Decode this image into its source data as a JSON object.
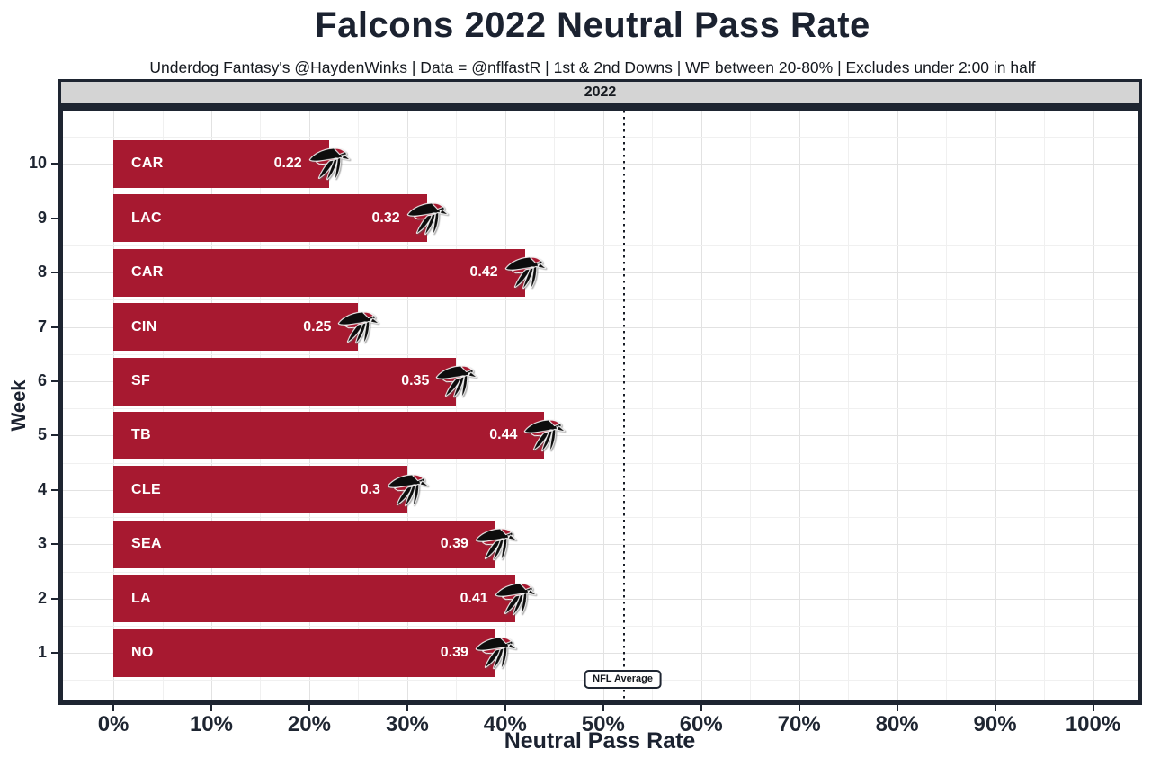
{
  "header": {
    "title": "Falcons 2022 Neutral Pass Rate",
    "subtitle": "Underdog Fantasy's @HaydenWinks | Data = @nflfastR | 1st & 2nd Downs | WP between 20-80% | Excludes under 2:00 in half"
  },
  "chart_data": {
    "type": "bar",
    "orientation": "horizontal",
    "title": "Falcons 2022 Neutral Pass Rate",
    "subtitle": "Underdog Fantasy's @HaydenWinks | Data = @nflfastR | 1st & 2nd Downs | WP between 20-80% | Excludes under 2:00 in half",
    "facet_label": "2022",
    "x_axis": {
      "label": "Neutral Pass Rate",
      "tick_labels": [
        "0%",
        "10%",
        "20%",
        "30%",
        "40%",
        "50%",
        "60%",
        "70%",
        "80%",
        "90%",
        "100%"
      ],
      "tick_values": [
        0,
        0.1,
        0.2,
        0.3,
        0.4,
        0.5,
        0.6,
        0.7,
        0.8,
        0.9,
        1.0
      ],
      "range": [
        0,
        1
      ],
      "grid": true
    },
    "y_axis": {
      "label": "Week",
      "categories": [
        "10",
        "9",
        "8",
        "7",
        "6",
        "5",
        "4",
        "3",
        "2",
        "1"
      ]
    },
    "bars": [
      {
        "week": "10",
        "opponent": "CAR",
        "value": 0.22,
        "value_label": "0.22"
      },
      {
        "week": "9",
        "opponent": "LAC",
        "value": 0.32,
        "value_label": "0.32"
      },
      {
        "week": "8",
        "opponent": "CAR",
        "value": 0.42,
        "value_label": "0.42"
      },
      {
        "week": "7",
        "opponent": "CIN",
        "value": 0.25,
        "value_label": "0.25"
      },
      {
        "week": "6",
        "opponent": "SF",
        "value": 0.35,
        "value_label": "0.35"
      },
      {
        "week": "5",
        "opponent": "TB",
        "value": 0.44,
        "value_label": "0.44"
      },
      {
        "week": "4",
        "opponent": "CLE",
        "value": 0.3,
        "value_label": "0.3"
      },
      {
        "week": "3",
        "opponent": "SEA",
        "value": 0.39,
        "value_label": "0.39"
      },
      {
        "week": "2",
        "opponent": "LA",
        "value": 0.41,
        "value_label": "0.41"
      },
      {
        "week": "1",
        "opponent": "NO",
        "value": 0.39,
        "value_label": "0.39"
      }
    ],
    "reference_line": {
      "value": 0.52,
      "label": "NFL Average",
      "style": "dotted"
    },
    "bar_icon": "atlanta-falcons-logo",
    "colors": {
      "bar": "#A71930",
      "bar_text": "#ffffff",
      "text_dark": "#1e2531",
      "panel_border": "#1e2531",
      "strip_background": "#d4d4d4",
      "grid_major": "#e2e2e2",
      "grid_minor": "#f0f0f0",
      "logo_black": "#0d0d0d",
      "logo_red": "#A71930"
    }
  }
}
